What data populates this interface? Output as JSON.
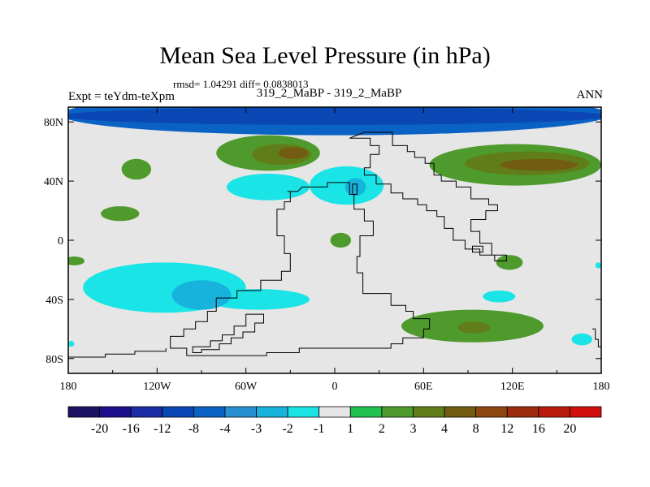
{
  "header": {
    "title": "Mean Sea Level Pressure (in hPa)",
    "stats": "rmsd= 1.04291 diff= 0.0838013",
    "subtitle": "319_2_MaBP - 319_2_MaBP",
    "expt": "Expt = teYdm-teXpm",
    "season": "ANN"
  },
  "chart_data": {
    "type": "heatmap",
    "title": "Mean Sea Level Pressure (in hPa)",
    "xlabel": "",
    "ylabel": "",
    "xlim": [
      -180,
      180
    ],
    "ylim": [
      -90,
      90
    ],
    "x_ticks": [
      {
        "value": -180,
        "label": "180"
      },
      {
        "value": -120,
        "label": "120W"
      },
      {
        "value": -60,
        "label": "60W"
      },
      {
        "value": 0,
        "label": "0"
      },
      {
        "value": 60,
        "label": "60E"
      },
      {
        "value": 120,
        "label": "120E"
      },
      {
        "value": 180,
        "label": "180"
      }
    ],
    "y_ticks": [
      {
        "value": 80,
        "label": "80N"
      },
      {
        "value": 40,
        "label": "40N"
      },
      {
        "value": 0,
        "label": "0"
      },
      {
        "value": -40,
        "label": "40S"
      },
      {
        "value": -80,
        "label": "80S"
      }
    ],
    "background_value": 0,
    "features": [
      {
        "name": "arctic-band-outer",
        "lon": 0,
        "lat": 85,
        "rlon": 185,
        "rlat": 14,
        "level": -8
      },
      {
        "name": "arctic-band-inner",
        "lon": 0,
        "lat": 84,
        "rlon": 185,
        "rlat": 6,
        "level": -12
      },
      {
        "name": "north-atlantic-high",
        "lon": -45,
        "lat": 59,
        "rlon": 35,
        "rlat": 12,
        "level": 2
      },
      {
        "name": "north-atlantic-high-core",
        "lon": -36,
        "lat": 58,
        "rlon": 20,
        "rlat": 7,
        "level": 3
      },
      {
        "name": "north-atlantic-high-peak",
        "lon": -28,
        "lat": 59,
        "rlon": 10,
        "rlat": 4,
        "level": 4
      },
      {
        "name": "north-pacific-high",
        "lon": 122,
        "lat": 51,
        "rlon": 58,
        "rlat": 14,
        "level": 2
      },
      {
        "name": "north-pacific-high-core",
        "lon": 130,
        "lat": 52,
        "rlon": 42,
        "rlat": 8,
        "level": 3
      },
      {
        "name": "north-pacific-high-peak",
        "lon": 138,
        "lat": 51,
        "rlon": 26,
        "rlat": 4,
        "level": 4
      },
      {
        "name": "northeast-pacific-cell",
        "lon": -134,
        "lat": 48,
        "rlon": 10,
        "rlat": 7,
        "level": 2
      },
      {
        "name": "subtropical-cell-west",
        "lon": -145,
        "lat": 18,
        "rlon": 13,
        "rlat": 5,
        "level": 2
      },
      {
        "name": "mediterranean-low",
        "lon": -45,
        "lat": 36,
        "rlon": 28,
        "rlat": 9,
        "level": -2
      },
      {
        "name": "europe-low",
        "lon": 8,
        "lat": 37,
        "rlon": 25,
        "rlat": 13,
        "level": -2
      },
      {
        "name": "europe-low-core",
        "lon": 14,
        "lat": 36,
        "rlon": 7,
        "rlat": 6,
        "level": -3
      },
      {
        "name": "africa-high",
        "lon": 4,
        "lat": 0,
        "rlon": 7,
        "rlat": 5,
        "level": 2
      },
      {
        "name": "equatorial-east-cell",
        "lon": -176,
        "lat": -14,
        "rlon": 7,
        "rlat": 3,
        "level": 2
      },
      {
        "name": "south-atlantic-low",
        "lon": -115,
        "lat": -32,
        "rlon": 55,
        "rlat": 17,
        "level": -2
      },
      {
        "name": "south-atlantic-low-extension",
        "lon": -52,
        "lat": -40,
        "rlon": 35,
        "rlat": 7,
        "level": -2
      },
      {
        "name": "south-atlantic-low-core",
        "lon": -90,
        "lat": -37,
        "rlon": 20,
        "rlat": 10,
        "level": -3
      },
      {
        "name": "indian-ocean-high",
        "lon": 93,
        "lat": -58,
        "rlon": 48,
        "rlat": 11,
        "level": 2
      },
      {
        "name": "indian-ocean-high-core",
        "lon": 94,
        "lat": -59,
        "rlon": 11,
        "rlat": 4,
        "level": 3
      },
      {
        "name": "east-cell",
        "lon": 118,
        "lat": -15,
        "rlon": 9,
        "rlat": 5,
        "level": 2
      },
      {
        "name": "southeast-low",
        "lon": 111,
        "lat": -38,
        "rlon": 11,
        "rlat": 4,
        "level": -2
      },
      {
        "name": "far-southeast-low",
        "lon": 167,
        "lat": -67,
        "rlon": 7,
        "rlat": 4,
        "level": -2
      },
      {
        "name": "far-southwest-low",
        "lon": -178,
        "lat": -70,
        "rlon": 2,
        "rlat": 2,
        "level": -2
      },
      {
        "name": "far-east-lowlet",
        "lon": 178,
        "lat": -17,
        "rlon": 2,
        "rlat": 2,
        "level": -2
      }
    ],
    "coastlines": [
      [
        [
          10,
          69
        ],
        [
          20,
          73
        ],
        [
          39,
          73
        ],
        [
          39,
          64
        ],
        [
          49,
          64
        ],
        [
          49,
          60
        ],
        [
          54,
          60
        ],
        [
          54,
          56
        ],
        [
          61,
          56
        ],
        [
          61,
          52
        ],
        [
          67,
          52
        ],
        [
          67,
          44
        ],
        [
          72,
          44
        ],
        [
          72,
          40
        ],
        [
          82,
          40
        ],
        [
          82,
          36
        ],
        [
          92,
          36
        ],
        [
          92,
          28
        ],
        [
          104,
          28
        ],
        [
          104,
          24
        ],
        [
          110,
          24
        ],
        [
          110,
          20
        ],
        [
          102,
          20
        ],
        [
          102,
          14
        ],
        [
          92,
          14
        ],
        [
          92,
          6
        ],
        [
          98,
          6
        ],
        [
          98,
          -2
        ],
        [
          106,
          -2
        ],
        [
          106,
          -10
        ],
        [
          116,
          -10
        ],
        [
          116,
          -14
        ],
        [
          108,
          -14
        ],
        [
          108,
          -10
        ],
        [
          98,
          -10
        ],
        [
          98,
          -6
        ],
        [
          88,
          -6
        ],
        [
          88,
          0
        ],
        [
          80,
          0
        ],
        [
          80,
          8
        ],
        [
          74,
          8
        ],
        [
          74,
          16
        ],
        [
          69,
          16
        ],
        [
          69,
          20
        ],
        [
          62,
          20
        ],
        [
          62,
          24
        ],
        [
          56,
          24
        ],
        [
          56,
          28
        ],
        [
          46,
          28
        ],
        [
          46,
          32
        ],
        [
          38,
          32
        ],
        [
          38,
          38
        ],
        [
          28,
          38
        ],
        [
          28,
          44
        ],
        [
          20,
          44
        ],
        [
          20,
          49
        ],
        [
          24,
          49
        ],
        [
          24,
          58
        ],
        [
          30,
          58
        ],
        [
          30,
          64
        ],
        [
          24,
          64
        ],
        [
          24,
          69
        ]
      ],
      [
        [
          -32,
          33
        ],
        [
          -25,
          33
        ],
        [
          -22,
          36
        ],
        [
          -5,
          36
        ],
        [
          -5,
          39
        ],
        [
          10,
          39
        ],
        [
          10,
          31
        ],
        [
          13,
          31
        ],
        [
          13,
          21
        ],
        [
          20,
          21
        ],
        [
          20,
          13
        ],
        [
          26,
          13
        ],
        [
          26,
          3
        ],
        [
          17,
          3
        ],
        [
          17,
          -11
        ],
        [
          15,
          -11
        ],
        [
          15,
          -22
        ],
        [
          19,
          -22
        ],
        [
          19,
          -36
        ],
        [
          38,
          -36
        ],
        [
          38,
          -44
        ],
        [
          48,
          -44
        ],
        [
          48,
          -48
        ],
        [
          53,
          -48
        ],
        [
          53,
          -53
        ],
        [
          64,
          -53
        ],
        [
          64,
          -60
        ],
        [
          60,
          -60
        ],
        [
          60,
          -66
        ],
        [
          46,
          -66
        ],
        [
          46,
          -70
        ],
        [
          38,
          -70
        ],
        [
          38,
          -73
        ],
        [
          -24,
          -73
        ],
        [
          -24,
          -76
        ],
        [
          -46,
          -76
        ],
        [
          -46,
          -78
        ],
        [
          -100,
          -78
        ],
        [
          -100,
          -73
        ],
        [
          -111,
          -73
        ],
        [
          -111,
          -65
        ],
        [
          -102,
          -65
        ],
        [
          -102,
          -60
        ],
        [
          -94,
          -60
        ],
        [
          -94,
          -55
        ],
        [
          -86,
          -55
        ],
        [
          -86,
          -48
        ],
        [
          -80,
          -48
        ],
        [
          -80,
          -39
        ],
        [
          -66,
          -39
        ],
        [
          -66,
          -34
        ],
        [
          -50,
          -34
        ],
        [
          -50,
          -27
        ],
        [
          -36,
          -27
        ],
        [
          -36,
          -21
        ],
        [
          -30,
          -21
        ],
        [
          -30,
          -9
        ],
        [
          -34,
          -9
        ],
        [
          -34,
          3
        ],
        [
          -39,
          3
        ],
        [
          -39,
          21
        ],
        [
          -34,
          21
        ],
        [
          -34,
          26
        ],
        [
          -30,
          26
        ],
        [
          -30,
          33
        ]
      ],
      [
        [
          -60,
          -50
        ],
        [
          -48,
          -50
        ],
        [
          -48,
          -56
        ],
        [
          -54,
          -56
        ],
        [
          -54,
          -62
        ],
        [
          -62,
          -62
        ],
        [
          -62,
          -66
        ],
        [
          -70,
          -66
        ],
        [
          -70,
          -70
        ],
        [
          -78,
          -70
        ],
        [
          -78,
          -74
        ],
        [
          -90,
          -74
        ],
        [
          -90,
          -76
        ],
        [
          -96,
          -76
        ],
        [
          -96,
          -72
        ],
        [
          -84,
          -72
        ],
        [
          -84,
          -68
        ],
        [
          -76,
          -68
        ],
        [
          -76,
          -64
        ],
        [
          -68,
          -64
        ],
        [
          -68,
          -58
        ],
        [
          -60,
          -58
        ]
      ],
      [
        [
          93,
          -4
        ],
        [
          100,
          -4
        ],
        [
          100,
          -8
        ],
        [
          93,
          -8
        ]
      ],
      [
        [
          15,
          38
        ],
        [
          15,
          31
        ],
        [
          12,
          31
        ],
        [
          12,
          38
        ]
      ],
      [
        [
          -180,
          -79
        ],
        [
          -155,
          -79
        ],
        [
          -155,
          -77
        ],
        [
          -135,
          -77
        ],
        [
          -135,
          -75
        ],
        [
          -114,
          -75
        ],
        [
          -114,
          -73
        ]
      ],
      [
        [
          174,
          -60
        ],
        [
          176,
          -60
        ],
        [
          176,
          -67
        ],
        [
          178,
          -67
        ],
        [
          178,
          -72
        ],
        [
          180,
          -72
        ]
      ]
    ],
    "colorbar": {
      "labels": [
        "-20",
        "-16",
        "-12",
        "-8",
        "-4",
        "-3",
        "-2",
        "-1",
        "1",
        "2",
        "3",
        "4",
        "8",
        "12",
        "16",
        "20"
      ],
      "colors": [
        "#1c1162",
        "#1d0f8c",
        "#1b2ca5",
        "#0a47b4",
        "#0a62c4",
        "#2790d1",
        "#17b3dc",
        "#1ae4e6",
        "#e6e6e6",
        "#1fc24f",
        "#4e9a2c",
        "#617d19",
        "#715c12",
        "#8f4710",
        "#9d2b0d",
        "#b81b0d",
        "#d00e0e"
      ]
    }
  }
}
